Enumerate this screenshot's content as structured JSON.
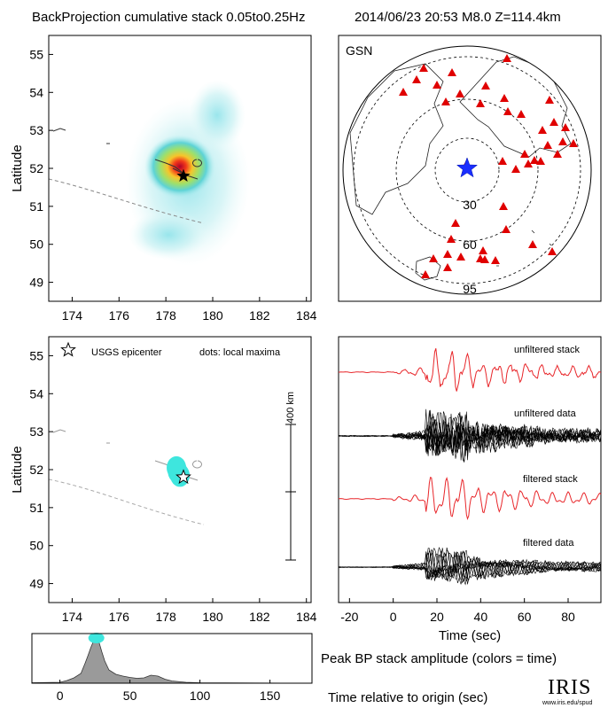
{
  "header": {
    "title": "BackProjection cumulative stack 0.05to0.25Hz",
    "event": "2014/06/23 20:53  M8.0  Z=114.4km"
  },
  "colors": {
    "stack": "#e8262a",
    "data": "#000000",
    "station": "#e00000",
    "epicenter_star": "#1a2eff",
    "hotspot_core": "#b0002a",
    "hotspot_mid": "#f2e12e",
    "hotspot_outer": "#60d8d8",
    "amplitude_fill": "#9a9a9a",
    "time_marker": "#3ee6de"
  },
  "chart_data": [
    {
      "type": "heatmap",
      "panel": "cumulative-stack-map",
      "xlim": [
        173,
        184.2
      ],
      "ylim": [
        48.5,
        55.5
      ],
      "xticks": [
        174,
        176,
        178,
        180,
        182,
        184
      ],
      "yticks": [
        49,
        50,
        51,
        52,
        53,
        54,
        55
      ],
      "ylabel": "Latitude",
      "peak": {
        "lon": 178.6,
        "lat": 51.85
      },
      "epicenter": {
        "lon": 178.75,
        "lat": 51.8
      }
    },
    {
      "type": "scatter",
      "panel": "station-map",
      "title": "GSN",
      "distance_rings": [
        "30",
        "60",
        "95"
      ],
      "source": {
        "name": "epicenter"
      }
    },
    {
      "type": "scatter",
      "panel": "local-maxima-map",
      "xlim": [
        173,
        184.2
      ],
      "ylim": [
        48.5,
        55.5
      ],
      "xticks": [
        174,
        176,
        178,
        180,
        182,
        184
      ],
      "yticks": [
        49,
        50,
        51,
        52,
        53,
        54,
        55
      ],
      "ylabel": "Latitude",
      "legend_star": "USGS epicenter",
      "legend_dots": "dots: local maxima",
      "scalebar_label": "400 km",
      "epicenter": {
        "lon": 178.75,
        "lat": 51.8
      },
      "maxima": [
        {
          "lon": 178.5,
          "lat": 51.95,
          "time": 20
        },
        {
          "lon": 178.6,
          "lat": 51.85,
          "time": 25
        },
        {
          "lon": 178.45,
          "lat": 52.05,
          "time": 30
        }
      ]
    },
    {
      "type": "line",
      "panel": "waveforms",
      "xlabel": "Time (sec)",
      "xlim": [
        -25,
        95
      ],
      "xticks": [
        -20,
        0,
        20,
        40,
        60,
        80
      ],
      "traces": [
        "unfiltered stack",
        "unfiltered data",
        "filtered stack",
        "filtered data"
      ]
    },
    {
      "type": "area",
      "panel": "peak-amplitude",
      "title": "Peak BP stack amplitude (colors = time)",
      "xlabel": "Time relative to origin (sec)",
      "xlim": [
        -20,
        180
      ],
      "xticks": [
        0,
        50,
        100,
        150
      ],
      "x": [
        -20,
        0,
        5,
        10,
        15,
        18,
        20,
        22,
        24,
        26,
        28,
        30,
        32,
        35,
        40,
        45,
        50,
        55,
        60,
        65,
        70,
        75,
        80,
        90,
        100,
        180
      ],
      "y": [
        0.01,
        0.02,
        0.06,
        0.12,
        0.22,
        0.45,
        0.62,
        0.8,
        0.95,
        1.0,
        0.92,
        0.7,
        0.5,
        0.3,
        0.2,
        0.16,
        0.13,
        0.11,
        0.12,
        0.18,
        0.16,
        0.09,
        0.05,
        0.02,
        0.01,
        0.0
      ]
    }
  ],
  "logo": {
    "text": "IRIS",
    "url_text": "www.iris.edu/spud"
  }
}
